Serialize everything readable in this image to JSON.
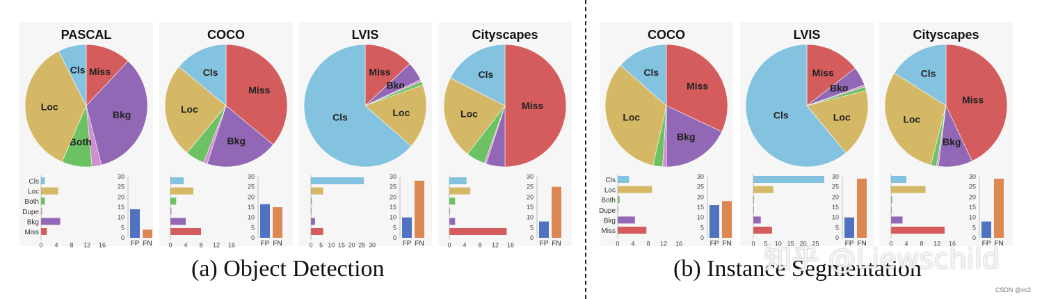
{
  "captions": {
    "a": "(a) Object Detection",
    "b": "(b) Instance Segmentation"
  },
  "watermark": "知乎 @Liewschild",
  "credit": "CSDN @rrr2",
  "colors": {
    "Cls": "#84c3e0",
    "Loc": "#d4b865",
    "Both": "#6cc263",
    "Dupe": "#cf8fd0",
    "Bkg": "#9267b5",
    "Miss": "#d45c5c",
    "FP": "#4f73c0",
    "FN": "#dd8753"
  },
  "chart_data": [
    {
      "type": "pie",
      "group": "(a) Object Detection",
      "title": "PASCAL",
      "categories": [
        "Miss",
        "Bkg",
        "Dupe",
        "Both",
        "Loc",
        "Cls"
      ],
      "values": [
        12,
        34,
        2.5,
        8,
        36,
        7.5
      ],
      "slice_labels": [
        "Miss",
        "Bkg",
        "",
        "Both",
        "Loc",
        "Cls"
      ],
      "bar_chart": {
        "type": "bar",
        "orientation": "horizontal",
        "categories": [
          "Cls",
          "Loc",
          "Both",
          "Dupe",
          "Bkg",
          "Miss"
        ],
        "values": [
          1,
          4.5,
          1,
          0.3,
          5,
          1.5
        ],
        "xticks": [
          0,
          4,
          8,
          12,
          16
        ],
        "xlim": [
          0,
          16
        ]
      },
      "fp_fn": {
        "type": "bar",
        "categories": [
          "FP",
          "FN"
        ],
        "values": [
          14,
          4
        ],
        "yticks": [
          0,
          5,
          10,
          15,
          20,
          25,
          30
        ],
        "ylim": [
          0,
          30
        ]
      }
    },
    {
      "type": "pie",
      "group": "(a) Object Detection",
      "title": "COCO",
      "categories": [
        "Miss",
        "Bkg",
        "Dupe",
        "Both",
        "Loc",
        "Cls"
      ],
      "values": [
        36,
        19,
        1,
        5,
        25,
        14
      ],
      "slice_labels": [
        "Miss",
        "Bkg",
        "",
        "",
        "Loc",
        "Cls"
      ],
      "bar_chart": {
        "type": "bar",
        "orientation": "horizontal",
        "categories": [
          "Cls",
          "Loc",
          "Both",
          "Dupe",
          "Bkg",
          "Miss"
        ],
        "values": [
          3.5,
          6,
          1.5,
          0.3,
          4,
          8
        ],
        "xticks": [
          0,
          4,
          8,
          12,
          16
        ],
        "xlim": [
          0,
          16
        ]
      },
      "fp_fn": {
        "type": "bar",
        "categories": [
          "FP",
          "FN"
        ],
        "values": [
          16.5,
          15
        ],
        "yticks": [
          0,
          5,
          10,
          15,
          20,
          25,
          30
        ],
        "ylim": [
          0,
          30
        ]
      }
    },
    {
      "type": "pie",
      "group": "(a) Object Detection",
      "title": "LVIS",
      "categories": [
        "Miss",
        "Bkg",
        "Dupe",
        "Both",
        "Loc",
        "Cls"
      ],
      "values": [
        13,
        5,
        0.5,
        1,
        17,
        63.5
      ],
      "slice_labels": [
        "Miss",
        "Bkg",
        "",
        "",
        "Loc",
        "Cls"
      ],
      "bar_chart": {
        "type": "bar",
        "orientation": "horizontal",
        "categories": [
          "Cls",
          "Loc",
          "Both",
          "Dupe",
          "Bkg",
          "Miss"
        ],
        "values": [
          26,
          6,
          0.5,
          0.3,
          2,
          6
        ],
        "xticks": [
          0,
          5,
          10,
          15,
          20,
          25,
          30
        ],
        "xlim": [
          0,
          30
        ]
      },
      "fp_fn": {
        "type": "bar",
        "categories": [
          "FP",
          "FN"
        ],
        "values": [
          10,
          28
        ],
        "yticks": [
          0,
          5,
          10,
          15,
          20,
          25,
          30
        ],
        "ylim": [
          0,
          30
        ]
      }
    },
    {
      "type": "pie",
      "group": "(a) Object Detection",
      "title": "Cityscapes",
      "categories": [
        "Miss",
        "Bkg",
        "Dupe",
        "Both",
        "Loc",
        "Cls"
      ],
      "values": [
        50,
        5,
        0.5,
        5,
        22,
        17.5
      ],
      "slice_labels": [
        "Miss",
        "",
        "",
        "",
        "Loc",
        "Cls"
      ],
      "bar_chart": {
        "type": "bar",
        "orientation": "horizontal",
        "categories": [
          "Cls",
          "Loc",
          "Both",
          "Dupe",
          "Bkg",
          "Miss"
        ],
        "values": [
          4.5,
          5.5,
          1.5,
          0.2,
          1.5,
          15
        ],
        "xticks": [
          0,
          4,
          8,
          12,
          16
        ],
        "xlim": [
          0,
          16
        ]
      },
      "fp_fn": {
        "type": "bar",
        "categories": [
          "FP",
          "FN"
        ],
        "values": [
          8,
          25
        ],
        "yticks": [
          0,
          5,
          10,
          15,
          20,
          25,
          30
        ],
        "ylim": [
          0,
          30
        ]
      }
    },
    {
      "type": "pie",
      "group": "(b) Instance Segmentation",
      "title": "COCO",
      "categories": [
        "Miss",
        "Bkg",
        "Dupe",
        "Both",
        "Loc",
        "Cls"
      ],
      "values": [
        32,
        18,
        1,
        2.5,
        33,
        13.5
      ],
      "slice_labels": [
        "Miss",
        "Bkg",
        "",
        "",
        "Loc",
        "Cls"
      ],
      "bar_chart": {
        "type": "bar",
        "orientation": "horizontal",
        "categories": [
          "Cls",
          "Loc",
          "Both",
          "Dupe",
          "Bkg",
          "Miss"
        ],
        "values": [
          3,
          9,
          0.5,
          0.2,
          4.5,
          7.5
        ],
        "xticks": [
          0,
          4,
          8,
          12,
          16
        ],
        "xlim": [
          0,
          16
        ]
      },
      "fp_fn": {
        "type": "bar",
        "categories": [
          "FP",
          "FN"
        ],
        "values": [
          16,
          18
        ],
        "yticks": [
          0,
          5,
          10,
          15,
          20,
          25,
          30
        ],
        "ylim": [
          0,
          30
        ]
      }
    },
    {
      "type": "pie",
      "group": "(b) Instance Segmentation",
      "title": "LVIS",
      "categories": [
        "Miss",
        "Bkg",
        "Dupe",
        "Both",
        "Loc",
        "Cls"
      ],
      "values": [
        14.5,
        5,
        0.5,
        1,
        18,
        61
      ],
      "slice_labels": [
        "Miss",
        "Bkg",
        "",
        "",
        "Loc",
        "Cls"
      ],
      "bar_chart": {
        "type": "bar",
        "orientation": "horizontal",
        "categories": [
          "Cls",
          "Loc",
          "Both",
          "Dupe",
          "Bkg",
          "Miss"
        ],
        "values": [
          28.5,
          8,
          0.3,
          0.2,
          3,
          7.5
        ],
        "xticks": [
          0,
          5,
          10,
          15,
          20,
          25
        ],
        "xlim": [
          0,
          28.5
        ]
      },
      "fp_fn": {
        "type": "bar",
        "categories": [
          "FP",
          "FN"
        ],
        "values": [
          10,
          29
        ],
        "yticks": [
          0,
          5,
          10,
          15,
          20,
          25,
          30
        ],
        "ylim": [
          0,
          30
        ]
      }
    },
    {
      "type": "pie",
      "group": "(b) Instance Segmentation",
      "title": "Cityscapes",
      "categories": [
        "Miss",
        "Bkg",
        "Dupe",
        "Both",
        "Loc",
        "Cls"
      ],
      "values": [
        43,
        9,
        0.5,
        1.5,
        30,
        16
      ],
      "slice_labels": [
        "Miss",
        "Bkg",
        "",
        "",
        "Loc",
        "Cls"
      ],
      "bar_chart": {
        "type": "bar",
        "orientation": "horizontal",
        "categories": [
          "Cls",
          "Loc",
          "Both",
          "Dupe",
          "Bkg",
          "Miss"
        ],
        "values": [
          4,
          9,
          0.3,
          0.2,
          3,
          14
        ],
        "xticks": [
          0,
          4,
          8,
          12,
          16
        ],
        "xlim": [
          0,
          16
        ]
      },
      "fp_fn": {
        "type": "bar",
        "categories": [
          "FP",
          "FN"
        ],
        "values": [
          8,
          29
        ],
        "yticks": [
          0,
          5,
          10,
          15,
          20,
          25,
          30
        ],
        "ylim": [
          0,
          30
        ]
      }
    }
  ]
}
